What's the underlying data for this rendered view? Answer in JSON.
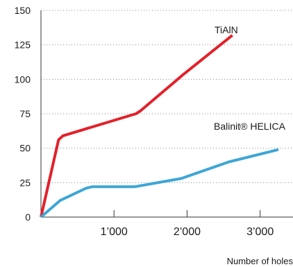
{
  "chart_data": {
    "type": "line",
    "title": "",
    "xlabel": "Number of holes",
    "ylabel": "",
    "xlim": [
      0,
      3450
    ],
    "ylim": [
      0,
      150
    ],
    "x_ticks": [
      1000,
      2000,
      3000
    ],
    "x_tick_labels": [
      "1’000",
      "2’000",
      "3’000"
    ],
    "y_ticks": [
      0,
      25,
      50,
      75,
      100,
      125,
      150
    ],
    "y_tick_labels": [
      "0",
      "25",
      "50",
      "75",
      "100",
      "125",
      "150"
    ],
    "grid": "horizontal dotted",
    "series": [
      {
        "name": "TiAlN",
        "color": "#e3212b",
        "x": [
          0,
          240,
          300,
          1300,
          1360,
          1960,
          2620
        ],
        "y": [
          0,
          56,
          59,
          75,
          77,
          104,
          132
        ]
      },
      {
        "name": "Balinit® HELICA",
        "color": "#3ea6d6",
        "x": [
          0,
          260,
          620,
          700,
          1280,
          1920,
          2570,
          3250
        ],
        "y": [
          0,
          12,
          21,
          22,
          22,
          28,
          40,
          49
        ]
      }
    ]
  }
}
